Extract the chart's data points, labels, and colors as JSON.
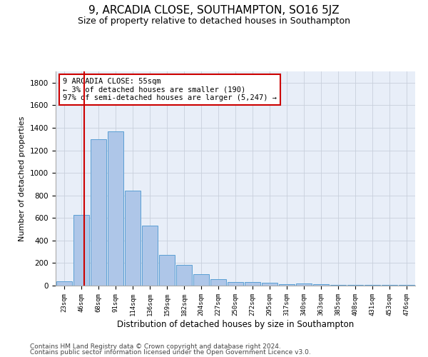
{
  "title1": "9, ARCADIA CLOSE, SOUTHAMPTON, SO16 5JZ",
  "title2": "Size of property relative to detached houses in Southampton",
  "xlabel": "Distribution of detached houses by size in Southampton",
  "ylabel": "Number of detached properties",
  "categories": [
    "23sqm",
    "46sqm",
    "68sqm",
    "91sqm",
    "114sqm",
    "136sqm",
    "159sqm",
    "182sqm",
    "204sqm",
    "227sqm",
    "250sqm",
    "272sqm",
    "295sqm",
    "317sqm",
    "340sqm",
    "363sqm",
    "385sqm",
    "408sqm",
    "431sqm",
    "453sqm",
    "476sqm"
  ],
  "values": [
    40,
    630,
    1300,
    1370,
    840,
    530,
    270,
    185,
    100,
    60,
    30,
    30,
    25,
    15,
    20,
    10,
    5,
    5,
    5,
    5,
    5
  ],
  "bar_color": "#aec6e8",
  "bar_edge_color": "#5a9fd4",
  "annotation_box_text": "9 ARCADIA CLOSE: 55sqm\n← 3% of detached houses are smaller (190)\n97% of semi-detached houses are larger (5,247) →",
  "vline_x": 1.15,
  "vline_color": "#cc0000",
  "box_edge_color": "#cc0000",
  "ylim": [
    0,
    1900
  ],
  "yticks": [
    0,
    200,
    400,
    600,
    800,
    1000,
    1200,
    1400,
    1600,
    1800
  ],
  "grid_color": "#c8d0dc",
  "bg_color": "#e8eef8",
  "footer1": "Contains HM Land Registry data © Crown copyright and database right 2024.",
  "footer2": "Contains public sector information licensed under the Open Government Licence v3.0.",
  "title1_fontsize": 11,
  "title2_fontsize": 9,
  "annotation_fontsize": 7.5,
  "footer_fontsize": 6.5,
  "xlabel_fontsize": 8.5,
  "ylabel_fontsize": 8
}
